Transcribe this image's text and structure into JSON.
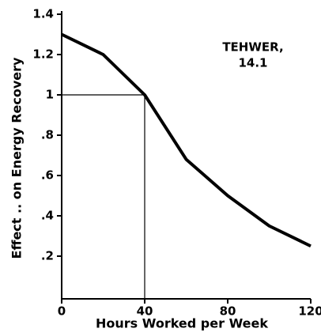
{
  "chart_data": {
    "type": "line",
    "x_label": "Hours Worked per Week",
    "y_label": "Effect .. on Energy Recovery",
    "annotations": [
      "TEHWER,",
      "14.1"
    ],
    "x": [
      0,
      20,
      40,
      60,
      80,
      100,
      120
    ],
    "series": [
      {
        "name": null,
        "color": "#000000",
        "values": [
          1.3,
          1.2,
          1.0,
          0.68,
          0.5,
          0.35,
          0.25
        ]
      }
    ],
    "reference_point": {
      "x": 40,
      "y": 1
    },
    "xlim": [
      0,
      120
    ],
    "xticks": [
      0,
      40,
      80,
      120
    ],
    "ylim": [
      0,
      1.4
    ],
    "yticks": [
      {
        "value": 0.2,
        "label": ".2"
      },
      {
        "value": 0.4,
        "label": ".4"
      },
      {
        "value": 0.6,
        "label": ".6"
      },
      {
        "value": 0.8,
        "label": ".8"
      },
      1,
      1.2,
      1.4
    ],
    "grid": false
  }
}
